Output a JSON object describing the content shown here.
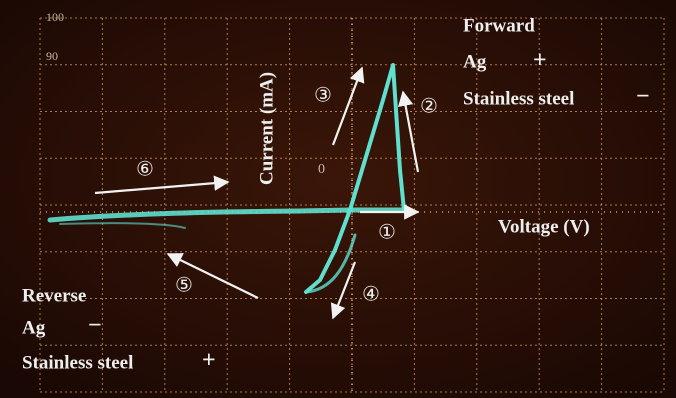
{
  "scope": {
    "scale_top": "100",
    "scale_second": "90",
    "origin": "0",
    "y_axis_label": "Current (mA)",
    "x_axis_label": "Voltage (V)"
  },
  "forward": {
    "title": "Forward",
    "electrode_1": "Ag",
    "sign_1": "+",
    "electrode_2": "Stainless steel",
    "sign_2": "−"
  },
  "reverse": {
    "title": "Reverse",
    "electrode_1": "Ag",
    "sign_1": "−",
    "electrode_2": "Stainless steel",
    "sign_2": "+"
  },
  "markers": [
    "①",
    "②",
    "③",
    "④",
    "⑤",
    "⑥"
  ]
}
